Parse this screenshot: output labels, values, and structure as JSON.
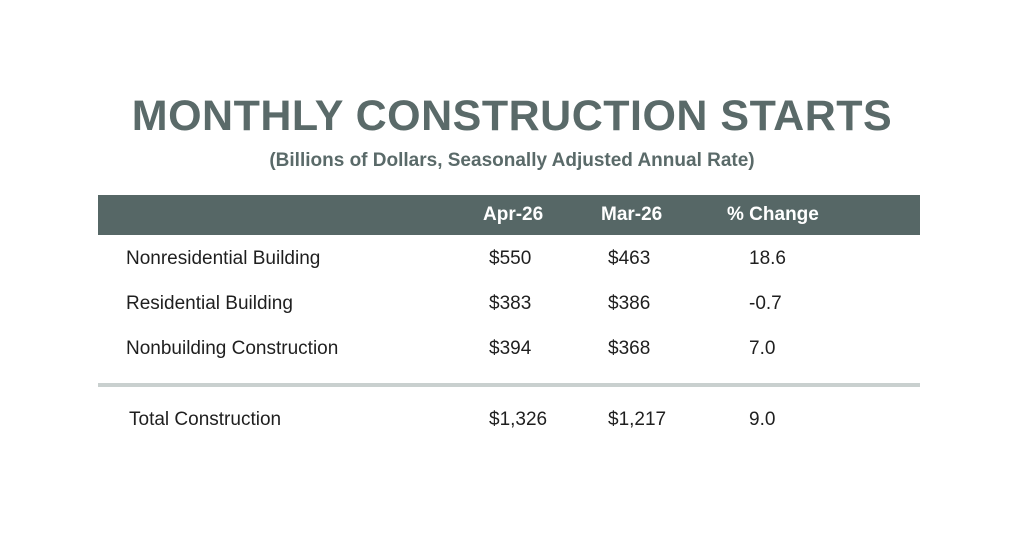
{
  "chart_data": {
    "type": "table",
    "title": "MONTHLY CONSTRUCTION STARTS",
    "subtitle": "(Billions of Dollars, Seasonally Adjusted Annual Rate)",
    "columns": [
      "",
      "Apr-26",
      "Mar-26",
      "% Change"
    ],
    "rows": [
      {
        "label": "Nonresidential Building",
        "apr": "$550",
        "mar": "$463",
        "change": "18.6"
      },
      {
        "label": "Residential Building",
        "apr": "$383",
        "mar": "$386",
        "change": "-0.7"
      },
      {
        "label": "Nonbuilding Construction",
        "apr": "$394",
        "mar": "$368",
        "change": "7.0"
      }
    ],
    "total": {
      "label": "Total Construction",
      "apr": "$1,326",
      "mar": "$1,217",
      "change": "9.0"
    },
    "colors": {
      "header_bg": "#566766",
      "title": "#5a6a69",
      "divider": "#c9d0cf"
    }
  }
}
